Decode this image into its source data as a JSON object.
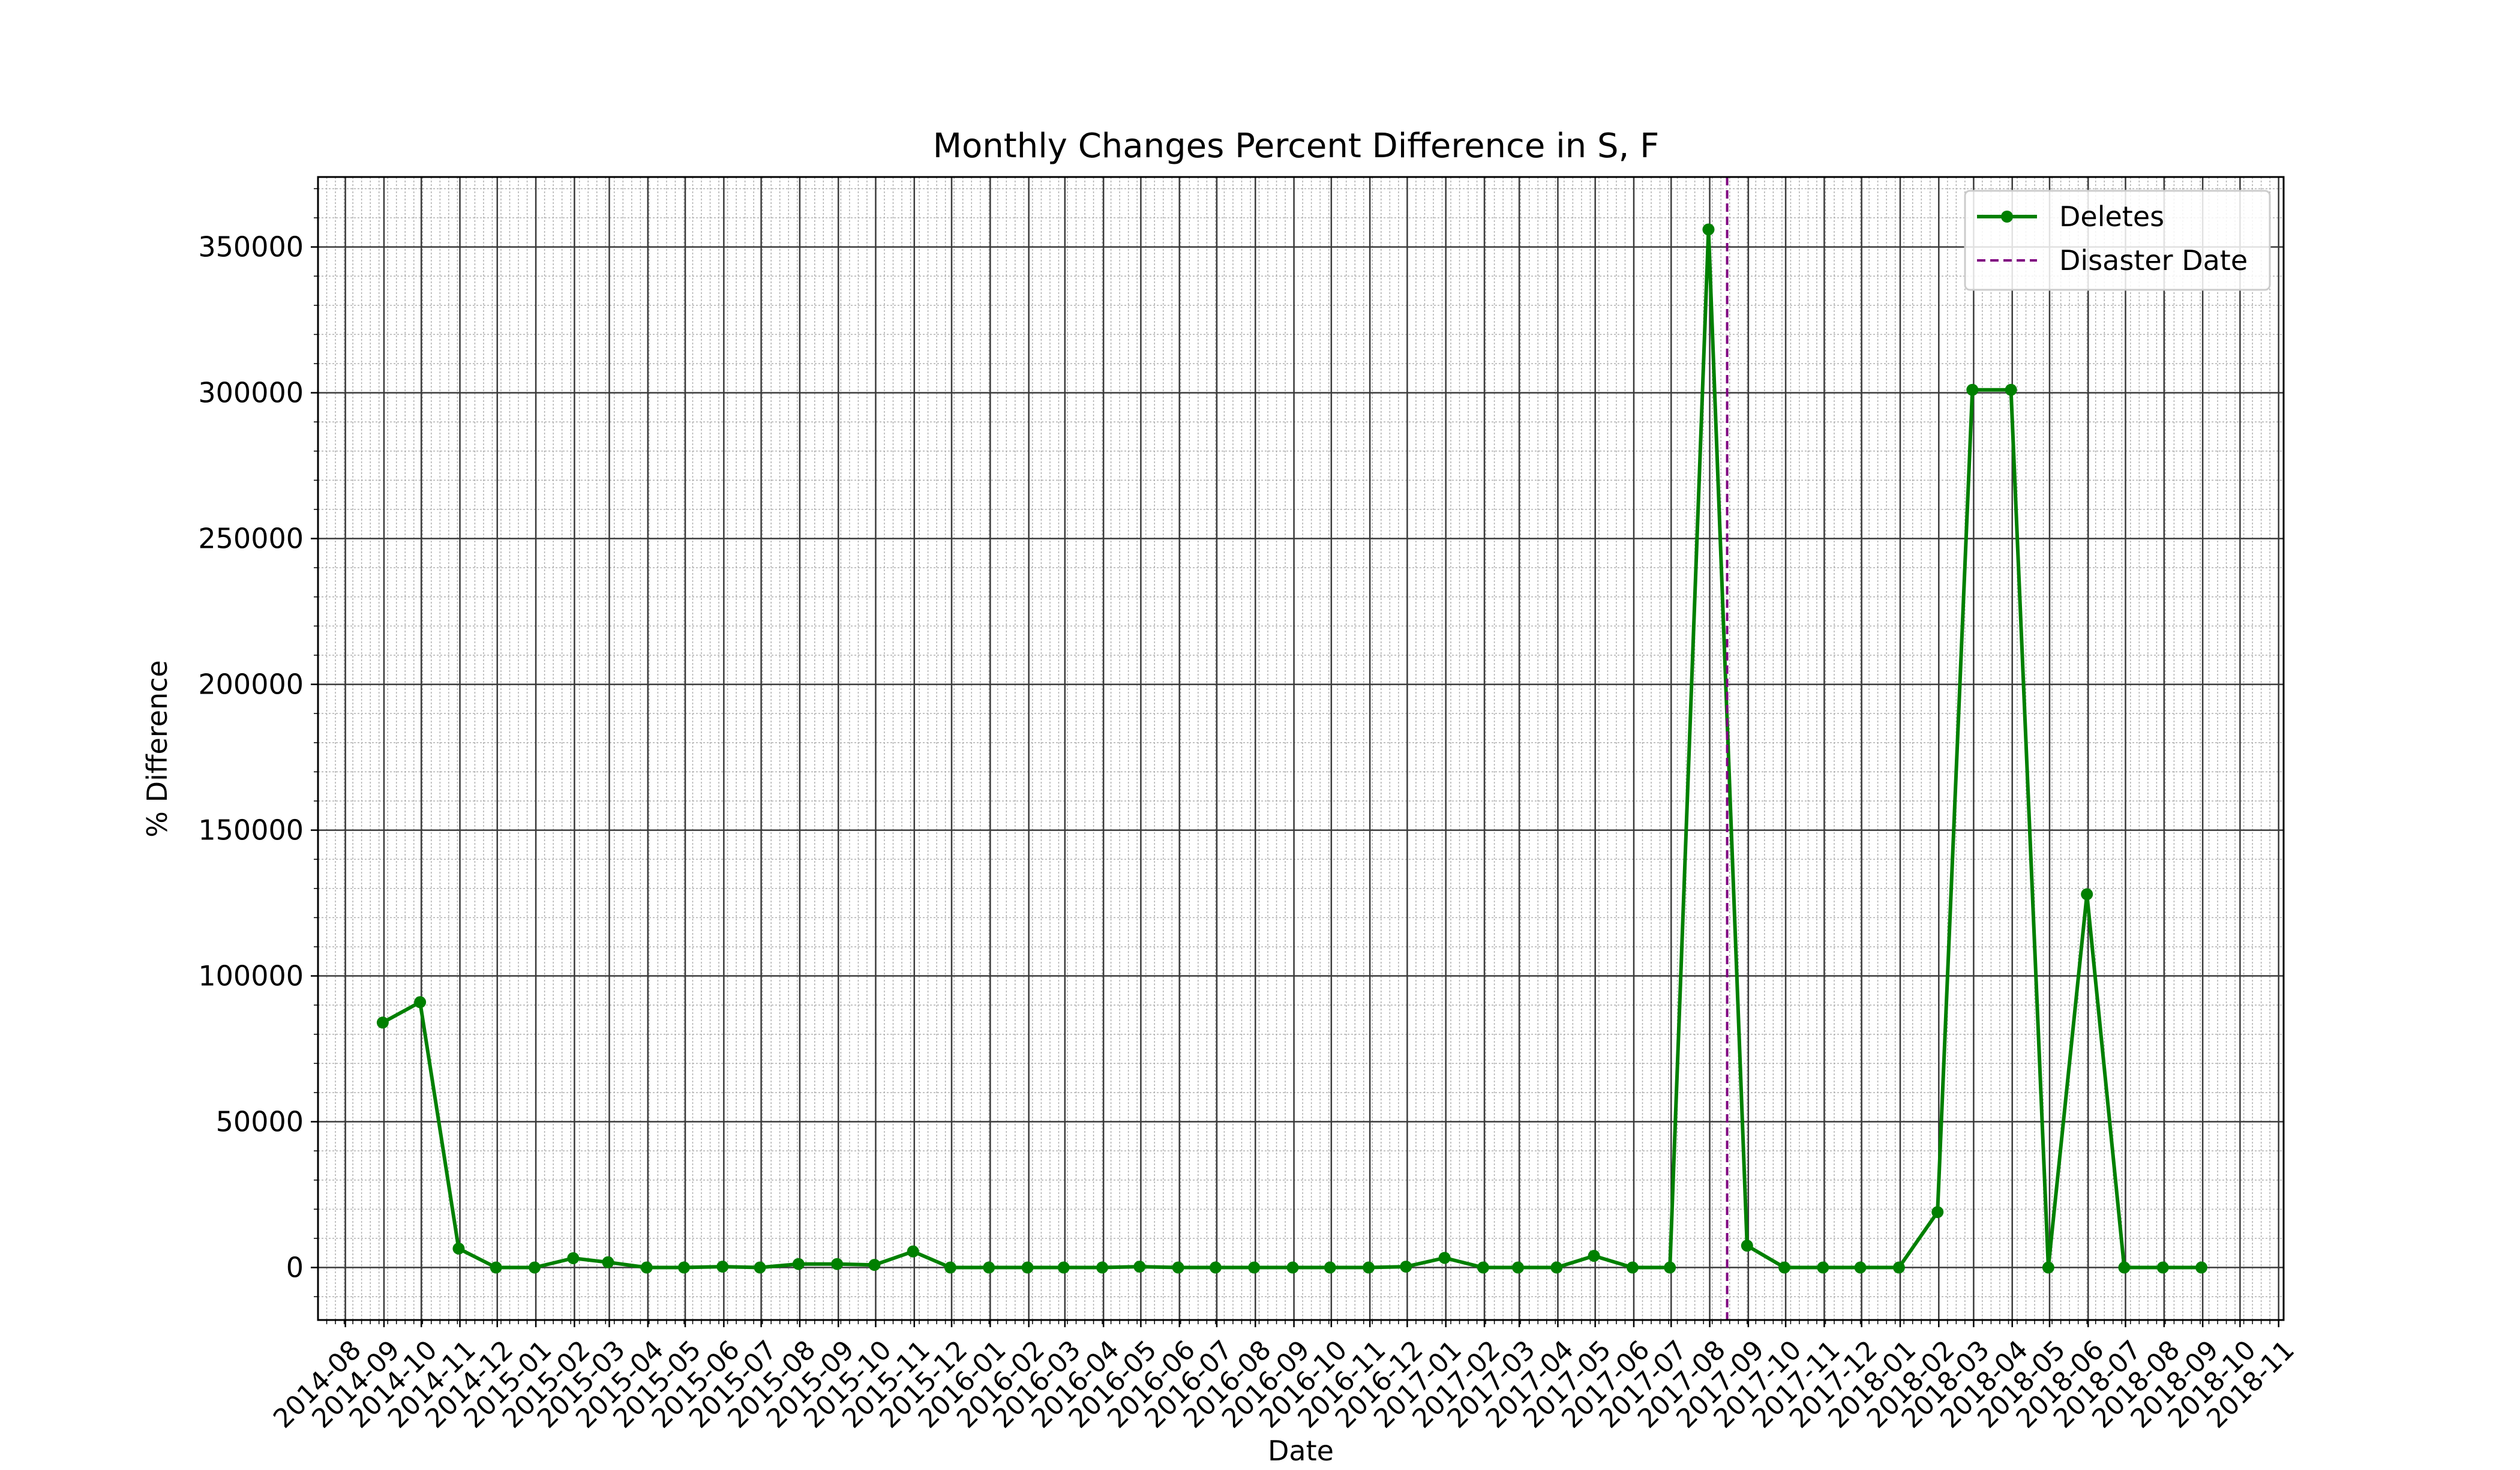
{
  "chart_data": {
    "type": "line",
    "title": "Monthly Changes Percent Difference in S, F",
    "xlabel": "Date",
    "ylabel": "% Difference",
    "ylim": [
      -18000,
      374000
    ],
    "xlim": [
      "2014-07-10",
      "2018-11-05"
    ],
    "grid": true,
    "legend_position": "top-right",
    "x_tick_labels": [
      "2014-08",
      "2014-09",
      "2014-10",
      "2014-11",
      "2014-12",
      "2015-01",
      "2015-02",
      "2015-03",
      "2015-04",
      "2015-05",
      "2015-06",
      "2015-07",
      "2015-08",
      "2015-09",
      "2015-10",
      "2015-11",
      "2015-12",
      "2016-01",
      "2016-02",
      "2016-03",
      "2016-04",
      "2016-05",
      "2016-06",
      "2016-07",
      "2016-08",
      "2016-09",
      "2016-10",
      "2016-11",
      "2016-12",
      "2017-01",
      "2017-02",
      "2017-03",
      "2017-04",
      "2017-05",
      "2017-06",
      "2017-07",
      "2017-08",
      "2017-09",
      "2017-10",
      "2017-11",
      "2017-12",
      "2018-01",
      "2018-02",
      "2018-03",
      "2018-04",
      "2018-05",
      "2018-06",
      "2018-07",
      "2018-08",
      "2018-09",
      "2018-10",
      "2018-11"
    ],
    "y_ticks": [
      0,
      50000,
      100000,
      150000,
      200000,
      250000,
      300000,
      350000
    ],
    "y_tick_labels": [
      "0",
      "50000",
      "100000",
      "150000",
      "200000",
      "250000",
      "300000",
      "350000"
    ],
    "series": [
      {
        "name": "Deletes",
        "color": "#008000",
        "marker": "circle",
        "x": [
          "2014-08-31",
          "2014-09-30",
          "2014-10-31",
          "2014-11-30",
          "2014-12-31",
          "2015-01-31",
          "2015-02-28",
          "2015-03-31",
          "2015-04-30",
          "2015-05-31",
          "2015-06-30",
          "2015-07-31",
          "2015-08-31",
          "2015-09-30",
          "2015-10-31",
          "2015-11-30",
          "2015-12-31",
          "2016-01-31",
          "2016-02-29",
          "2016-03-31",
          "2016-04-30",
          "2016-05-31",
          "2016-06-30",
          "2016-07-31",
          "2016-08-31",
          "2016-09-30",
          "2016-10-31",
          "2016-11-30",
          "2016-12-31",
          "2017-01-31",
          "2017-02-28",
          "2017-03-31",
          "2017-04-30",
          "2017-05-31",
          "2017-06-30",
          "2017-07-31",
          "2017-08-31",
          "2017-09-30",
          "2017-10-31",
          "2017-11-30",
          "2017-12-31",
          "2018-01-31",
          "2018-02-28",
          "2018-03-31",
          "2018-04-30",
          "2018-05-31",
          "2018-06-30",
          "2018-07-31",
          "2018-08-31"
        ],
        "values": [
          84000,
          91000,
          6500,
          0,
          0,
          3200,
          1800,
          0,
          0,
          300,
          0,
          1200,
          1200,
          900,
          5500,
          0,
          0,
          0,
          0,
          0,
          300,
          0,
          0,
          0,
          0,
          0,
          0,
          300,
          3300,
          0,
          0,
          0,
          4000,
          0,
          0,
          356000,
          7500,
          0,
          0,
          0,
          0,
          19000,
          301000,
          301000,
          0,
          128000,
          0,
          0,
          0
        ]
      }
    ],
    "vlines": [
      {
        "name": "Disaster Date",
        "color": "#800080",
        "style": "dashed",
        "x": "2017-08-15"
      }
    ]
  }
}
